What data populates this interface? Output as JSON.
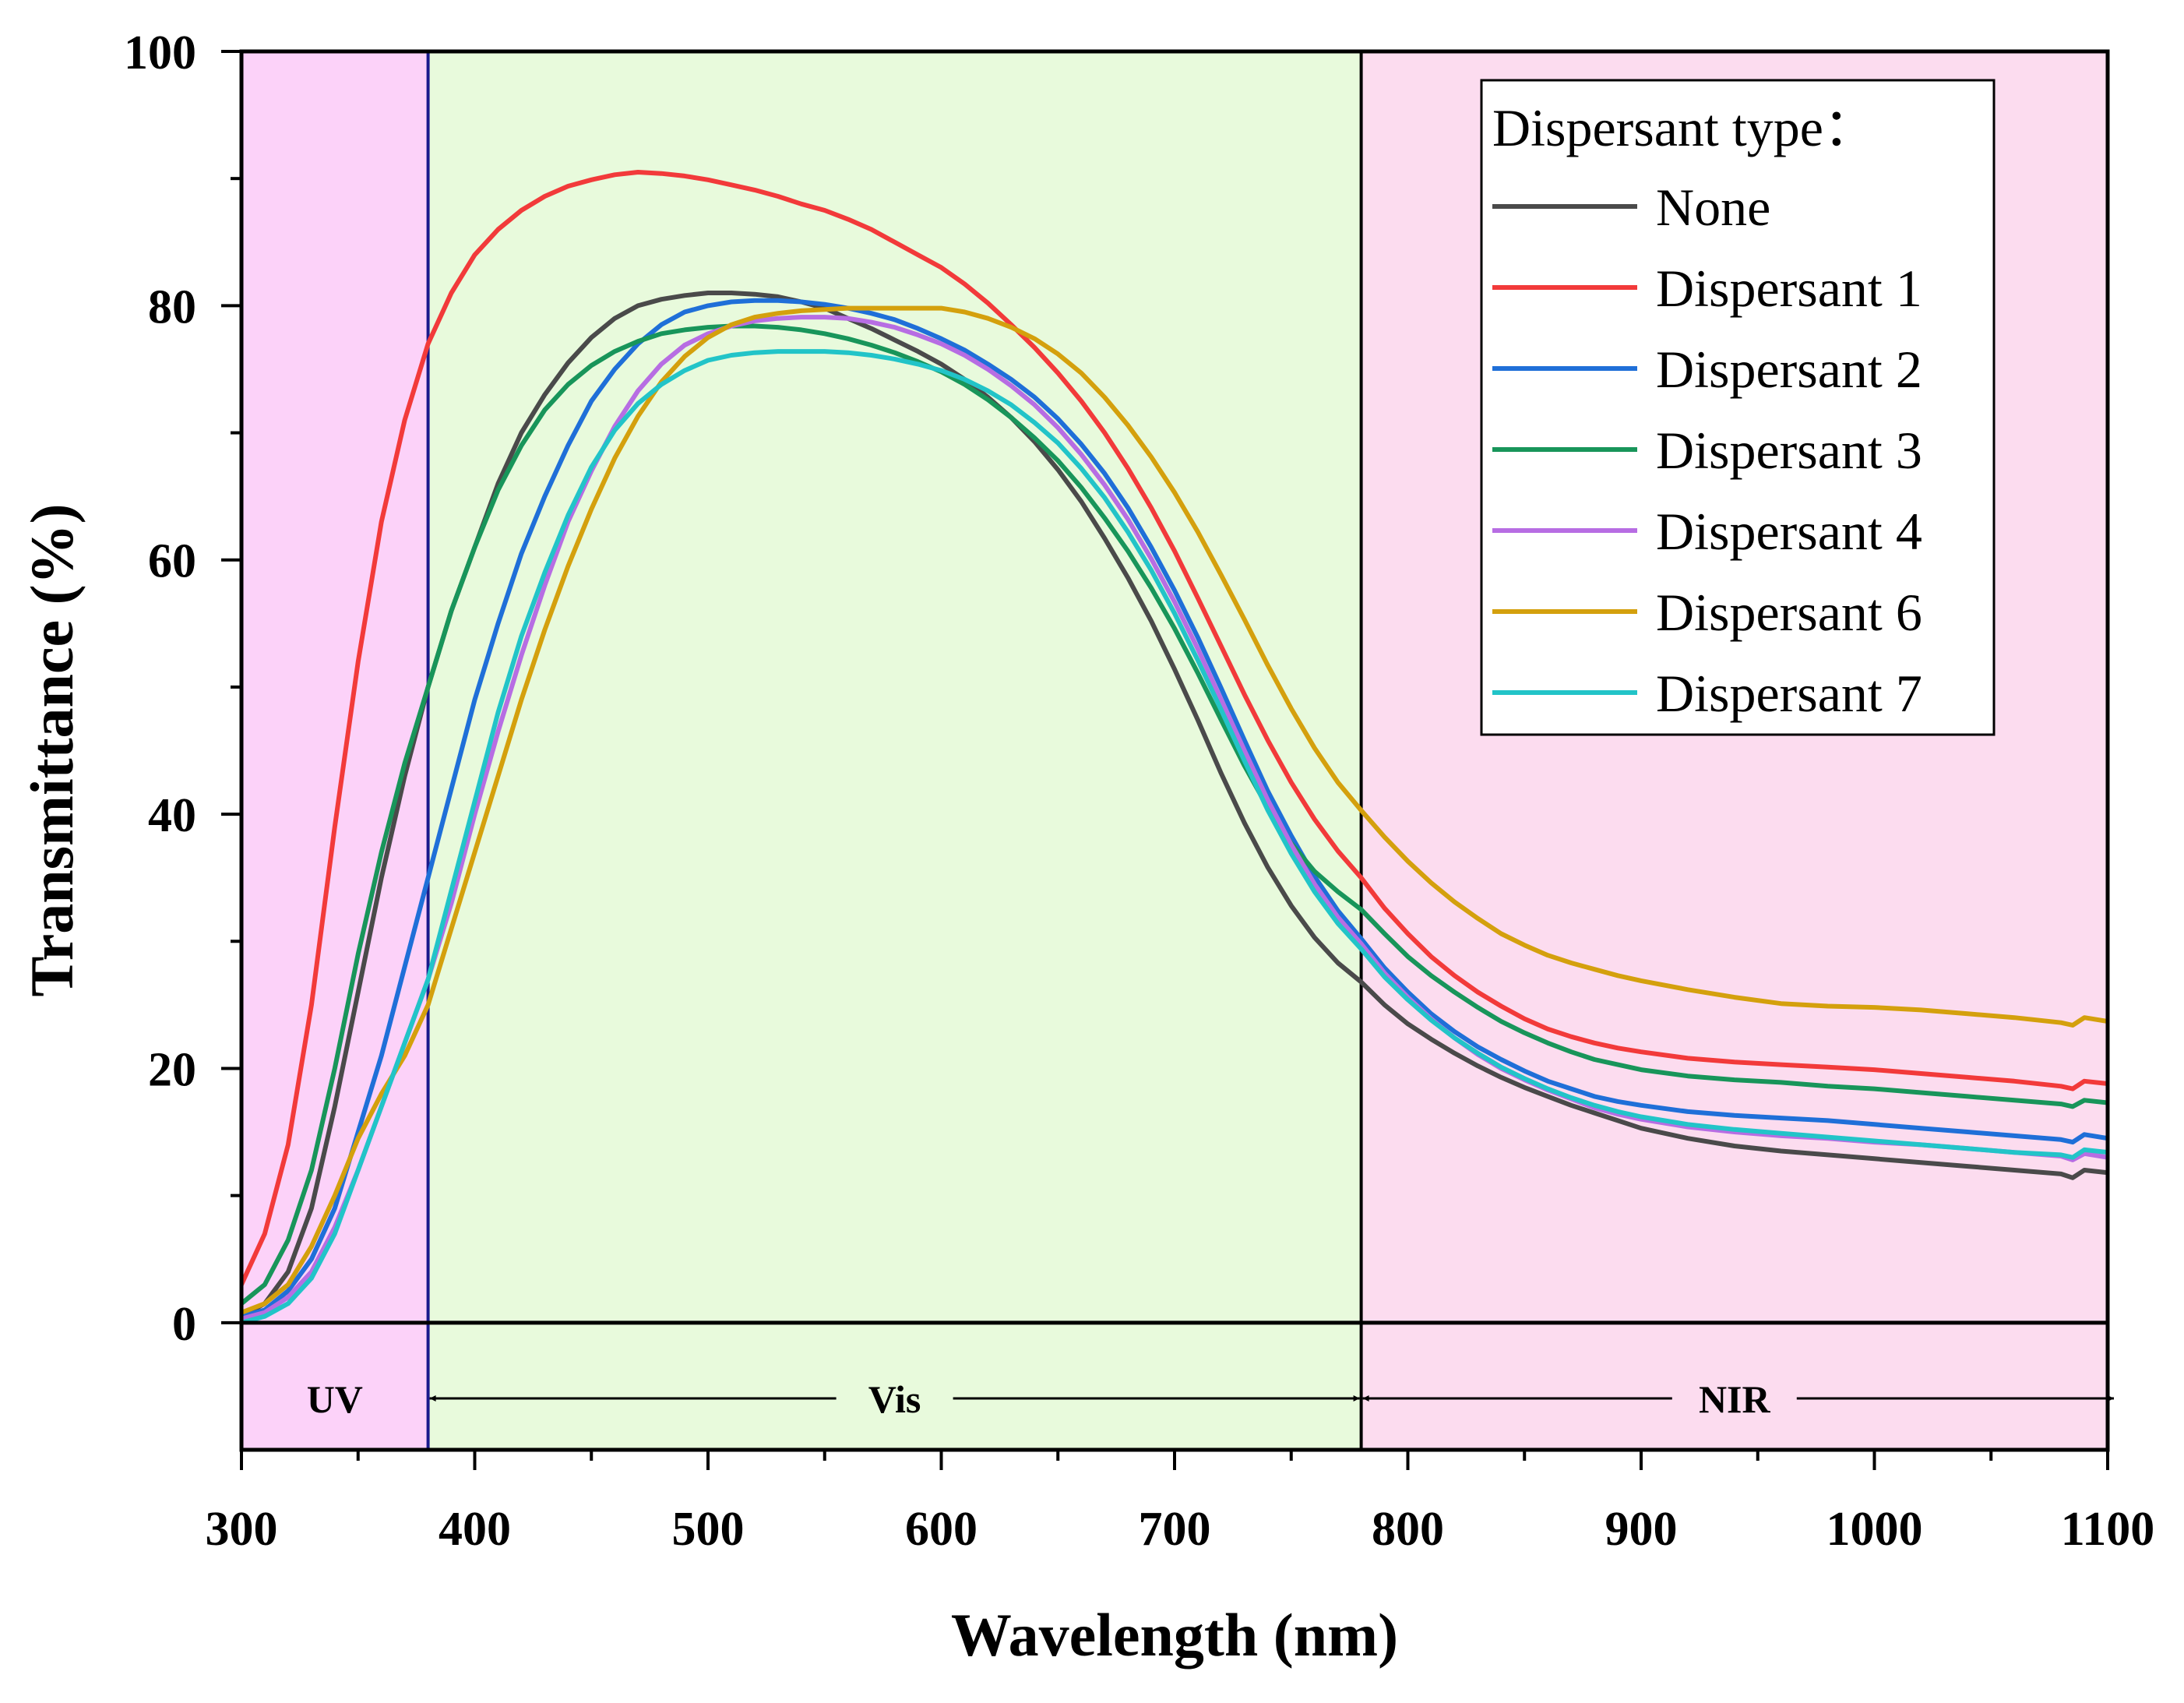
{
  "chart_data": {
    "type": "line",
    "xlabel": "Wavelength (nm)",
    "ylabel": "Transmittance (%)",
    "xlim": [
      300,
      1100
    ],
    "ylim": [
      -10,
      100
    ],
    "xticks": [
      300,
      400,
      500,
      600,
      700,
      800,
      900,
      1000,
      1100
    ],
    "yticks": [
      0,
      20,
      40,
      60,
      80,
      100
    ],
    "legend_title": "Dispersant type：",
    "legend_position": "top-right",
    "regions": [
      {
        "label": "UV",
        "from": 300,
        "to": 380,
        "color": "#fcd2f9"
      },
      {
        "label": "Vis",
        "from": 380,
        "to": 780,
        "color": "#e8fadc"
      },
      {
        "label": "NIR",
        "from": 780,
        "to": 1100,
        "color": "#fcdcef"
      }
    ],
    "x": [
      300,
      310,
      320,
      330,
      340,
      350,
      360,
      370,
      380,
      390,
      400,
      410,
      420,
      430,
      440,
      450,
      460,
      470,
      480,
      490,
      500,
      510,
      520,
      530,
      540,
      550,
      560,
      570,
      580,
      590,
      600,
      610,
      620,
      630,
      640,
      650,
      660,
      670,
      680,
      690,
      700,
      710,
      720,
      730,
      740,
      750,
      760,
      770,
      780,
      790,
      800,
      810,
      820,
      830,
      840,
      850,
      860,
      870,
      880,
      890,
      900,
      920,
      940,
      960,
      980,
      1000,
      1020,
      1040,
      1060,
      1080,
      1085,
      1090,
      1100
    ],
    "series": [
      {
        "name": "None",
        "color": "#4a4a4a",
        "values": [
          0.5,
          1.5,
          4,
          9,
          17,
          26,
          35,
          43,
          50,
          56,
          61,
          66,
          70,
          73,
          75.5,
          77.5,
          79,
          80,
          80.5,
          80.8,
          81,
          81,
          80.9,
          80.7,
          80.3,
          79.8,
          79,
          78.2,
          77.3,
          76.4,
          75.4,
          74.2,
          72.8,
          71.2,
          69.3,
          67.1,
          64.6,
          61.7,
          58.6,
          55.2,
          51.4,
          47.4,
          43.2,
          39.3,
          35.8,
          32.8,
          30.3,
          28.3,
          26.8,
          25,
          23.5,
          22.3,
          21.2,
          20.2,
          19.3,
          18.5,
          17.8,
          17.1,
          16.5,
          15.9,
          15.3,
          14.5,
          13.9,
          13.5,
          13.2,
          12.9,
          12.6,
          12.3,
          12,
          11.7,
          11.4,
          12,
          11.8
        ]
      },
      {
        "name": "Dispersant 1",
        "color": "#f23a3a",
        "values": [
          3,
          7,
          14,
          25,
          39,
          52,
          63,
          71,
          77,
          81,
          84,
          86,
          87.5,
          88.6,
          89.4,
          89.9,
          90.3,
          90.5,
          90.4,
          90.2,
          89.9,
          89.5,
          89.1,
          88.6,
          88,
          87.5,
          86.8,
          86,
          85,
          84,
          83,
          81.7,
          80.2,
          78.5,
          76.7,
          74.7,
          72.5,
          70,
          67.2,
          64.1,
          60.7,
          57,
          53.2,
          49.4,
          45.8,
          42.5,
          39.6,
          37.1,
          35,
          32.6,
          30.6,
          28.8,
          27.3,
          26,
          24.9,
          23.9,
          23.1,
          22.5,
          22,
          21.6,
          21.3,
          20.8,
          20.5,
          20.3,
          20.1,
          19.9,
          19.6,
          19.3,
          19,
          18.6,
          18.4,
          19,
          18.8
        ]
      },
      {
        "name": "Dispersant 2",
        "color": "#1f6fd8",
        "values": [
          0.5,
          1,
          2.5,
          5,
          9,
          15,
          21,
          28,
          35,
          42,
          49,
          55,
          60.5,
          65,
          69,
          72.5,
          75,
          77,
          78.5,
          79.5,
          80,
          80.3,
          80.4,
          80.4,
          80.3,
          80.1,
          79.8,
          79.4,
          78.9,
          78.2,
          77.4,
          76.5,
          75.4,
          74.2,
          72.8,
          71.1,
          69.1,
          66.8,
          64.1,
          61,
          57.6,
          53.9,
          49.9,
          45.8,
          41.8,
          38.3,
          35.1,
          32.4,
          30.2,
          27.9,
          26,
          24.3,
          22.9,
          21.7,
          20.7,
          19.8,
          19,
          18.4,
          17.8,
          17.4,
          17.1,
          16.6,
          16.3,
          16.1,
          15.9,
          15.6,
          15.3,
          15,
          14.7,
          14.4,
          14.2,
          14.8,
          14.5
        ]
      },
      {
        "name": "Dispersant 3",
        "color": "#18955a",
        "values": [
          1.5,
          3,
          6.5,
          12,
          20,
          29,
          37,
          44,
          50,
          56,
          61,
          65.5,
          69,
          71.8,
          73.8,
          75.3,
          76.4,
          77.2,
          77.8,
          78.1,
          78.3,
          78.4,
          78.4,
          78.3,
          78.1,
          77.8,
          77.4,
          76.9,
          76.3,
          75.6,
          74.8,
          73.8,
          72.6,
          71.2,
          69.6,
          67.8,
          65.7,
          63.3,
          60.7,
          57.8,
          54.6,
          51.1,
          47.4,
          43.8,
          40.5,
          37.7,
          35.5,
          33.9,
          32.5,
          30.6,
          28.8,
          27.3,
          26,
          24.8,
          23.7,
          22.8,
          22,
          21.3,
          20.7,
          20.3,
          19.9,
          19.4,
          19.1,
          18.9,
          18.6,
          18.4,
          18.1,
          17.8,
          17.5,
          17.2,
          17,
          17.5,
          17.3
        ]
      },
      {
        "name": "Dispersant 4",
        "color": "#b76de3",
        "values": [
          0.3,
          0.8,
          2,
          4,
          7.5,
          12,
          17,
          22,
          27,
          33,
          40,
          46.5,
          52.5,
          58,
          63,
          67,
          70.5,
          73.3,
          75.4,
          76.9,
          77.8,
          78.4,
          78.8,
          79,
          79.1,
          79.1,
          79,
          78.7,
          78.3,
          77.7,
          77,
          76.1,
          75,
          73.7,
          72.2,
          70.4,
          68.3,
          65.9,
          63.2,
          60.1,
          56.7,
          53,
          49,
          45,
          41.1,
          37.6,
          34.5,
          31.9,
          29.8,
          27.5,
          25.6,
          23.9,
          22.4,
          21.1,
          20,
          19.1,
          18.3,
          17.6,
          16.9,
          16.4,
          16,
          15.4,
          15,
          14.7,
          14.5,
          14.2,
          14,
          13.7,
          13.4,
          13.1,
          12.8,
          13.3,
          13
        ]
      },
      {
        "name": "Dispersant 6",
        "color": "#d4a00d",
        "values": [
          0.8,
          1.5,
          3,
          6,
          10,
          14.5,
          18,
          21,
          25,
          31,
          37,
          43,
          49,
          54.5,
          59.5,
          64,
          68,
          71.3,
          74,
          76,
          77.5,
          78.5,
          79.1,
          79.4,
          79.6,
          79.7,
          79.8,
          79.8,
          79.8,
          79.8,
          79.8,
          79.5,
          79,
          78.3,
          77.4,
          76.2,
          74.7,
          72.8,
          70.6,
          68.1,
          65.3,
          62.2,
          58.8,
          55.3,
          51.7,
          48.3,
          45.2,
          42.5,
          40.3,
          38.2,
          36.3,
          34.6,
          33.1,
          31.8,
          30.6,
          29.7,
          28.9,
          28.3,
          27.8,
          27.3,
          26.9,
          26.2,
          25.6,
          25.1,
          24.9,
          24.8,
          24.6,
          24.3,
          24,
          23.6,
          23.4,
          24,
          23.7
        ]
      },
      {
        "name": "Dispersant 7",
        "color": "#22c4c8",
        "values": [
          0,
          0.5,
          1.5,
          3.5,
          7,
          12,
          17,
          22,
          27,
          34,
          41,
          48,
          54,
          59,
          63.5,
          67.3,
          70.2,
          72.3,
          73.8,
          74.9,
          75.7,
          76.1,
          76.3,
          76.4,
          76.4,
          76.4,
          76.3,
          76.1,
          75.8,
          75.4,
          74.9,
          74.2,
          73.3,
          72.2,
          70.8,
          69.2,
          67.2,
          64.9,
          62.2,
          59.2,
          55.8,
          52.1,
          48.2,
          44.2,
          40.3,
          36.9,
          33.9,
          31.4,
          29.4,
          27.2,
          25.4,
          23.8,
          22.4,
          21.2,
          20.1,
          19.2,
          18.4,
          17.7,
          17.1,
          16.6,
          16.2,
          15.6,
          15.2,
          14.9,
          14.6,
          14.3,
          14,
          13.7,
          13.4,
          13.2,
          13,
          13.6,
          13.4
        ]
      }
    ]
  }
}
